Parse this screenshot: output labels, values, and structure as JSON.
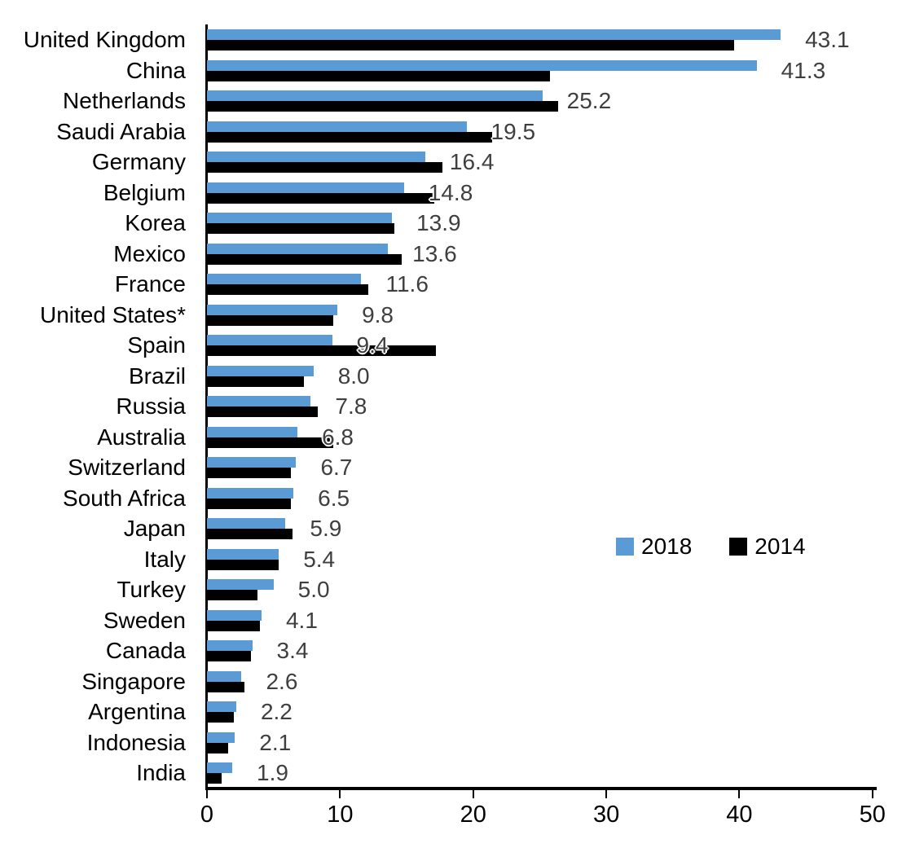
{
  "chart_data": {
    "type": "bar",
    "orientation": "horizontal",
    "title": "",
    "xlabel": "",
    "ylabel": "",
    "xlim": [
      0,
      50
    ],
    "x_ticks": [
      "0",
      "10",
      "20",
      "30",
      "40",
      "50"
    ],
    "grid": false,
    "categories": [
      "United Kingdom",
      "China",
      "Netherlands",
      "Saudi Arabia",
      "Germany",
      "Belgium",
      "Korea",
      "Mexico",
      "France",
      "United States*",
      "Spain",
      "Brazil",
      "Russia",
      "Australia",
      "Switzerland",
      "South Africa",
      "Japan",
      "Italy",
      "Turkey",
      "Sweden",
      "Canada",
      "Singapore",
      "Argentina",
      "Indonesia",
      "India"
    ],
    "series": [
      {
        "name": "2018",
        "color": "#5B9BD5",
        "values": [
          43.1,
          41.3,
          25.2,
          19.5,
          16.4,
          14.8,
          13.9,
          13.6,
          11.6,
          9.8,
          9.4,
          8.0,
          7.8,
          6.8,
          6.7,
          6.5,
          5.9,
          5.4,
          5.0,
          4.1,
          3.4,
          2.6,
          2.2,
          2.1,
          1.9
        ]
      },
      {
        "name": "2014",
        "color": "#000000",
        "values": [
          39.6,
          25.8,
          26.4,
          21.4,
          17.7,
          17.1,
          14.1,
          14.6,
          12.1,
          9.5,
          17.2,
          7.3,
          8.3,
          9.5,
          6.3,
          6.3,
          6.4,
          5.4,
          3.8,
          4.0,
          3.3,
          2.8,
          2.0,
          1.6,
          1.1
        ]
      }
    ],
    "data_labels": [
      "43.1",
      "41.3",
      "25.2",
      "19.5",
      "16.4",
      "14.8",
      "13.9",
      "13.6",
      "11.6",
      "9.8",
      "9.4",
      "8.0",
      "7.8",
      "6.8",
      "6.7",
      "6.5",
      "5.9",
      "5.4",
      "5.0",
      "4.1",
      "3.4",
      "2.6",
      "2.2",
      "2.1",
      "1.9"
    ],
    "data_labels_series": "2018",
    "legend": {
      "position": "middle-right",
      "entries": [
        {
          "label": "2018",
          "color": "#5B9BD5"
        },
        {
          "label": "2014",
          "color": "#000000"
        }
      ]
    }
  },
  "colors": {
    "background": "#ffffff",
    "axis": "#000000",
    "value_label": "#3f3f3f",
    "series_2018": "#5B9BD5",
    "series_2014": "#000000"
  }
}
